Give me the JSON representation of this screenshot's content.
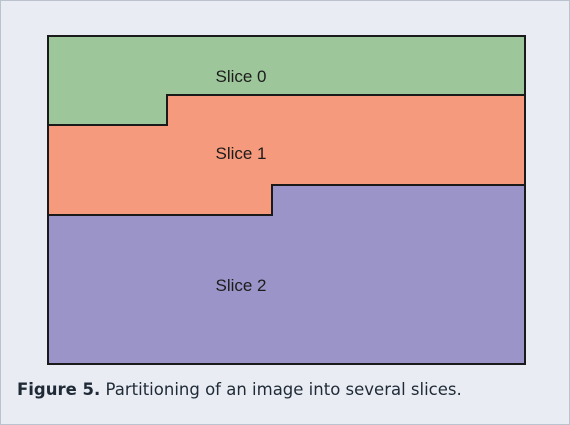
{
  "image_frame": {
    "border_color": "#1a1a1a"
  },
  "slices": [
    {
      "label": "Slice 0",
      "color": "#9dc79a"
    },
    {
      "label": "Slice 1",
      "color": "#f59a7c"
    },
    {
      "label": "Slice 2",
      "color": "#9b94c8"
    }
  ],
  "caption": {
    "label": "Figure 5.",
    "text": " Partitioning of an image into several slices."
  }
}
